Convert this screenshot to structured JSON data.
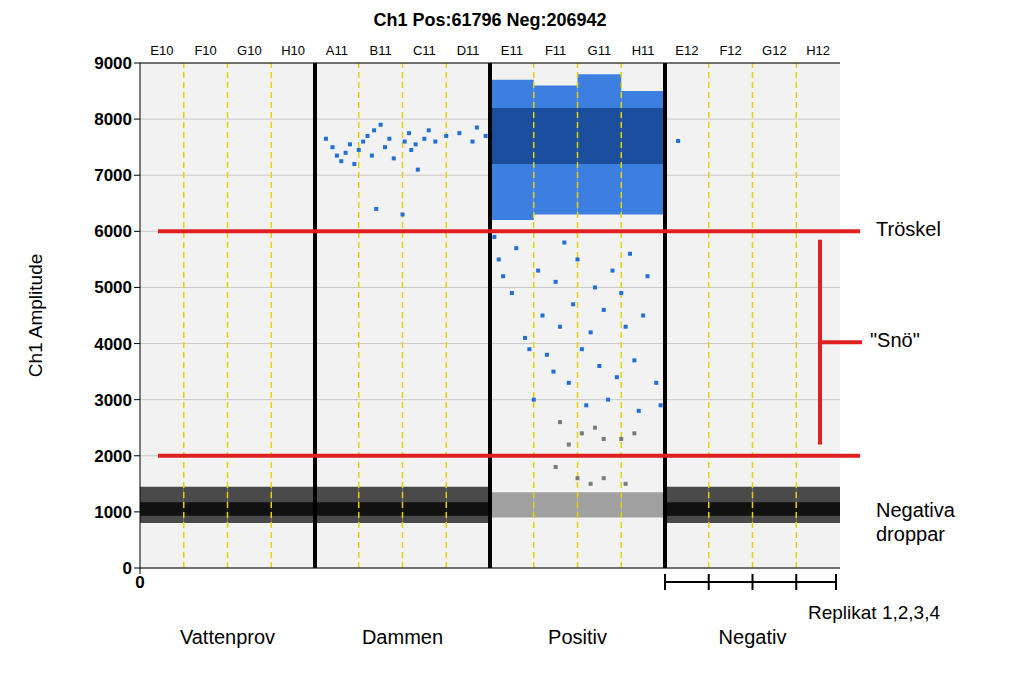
{
  "chart_data": {
    "type": "scatter",
    "title": "Ch1 Pos:61796 Neg:206942",
    "y_label": "Ch1 Amplitude",
    "wells": [
      "E10",
      "F10",
      "G10",
      "H10",
      "A11",
      "B11",
      "C11",
      "D11",
      "E11",
      "F11",
      "G11",
      "H11",
      "E12",
      "F12",
      "G12",
      "H12"
    ],
    "groups": [
      {
        "label": "Vattenprov",
        "wells": 4
      },
      {
        "label": "Dammen",
        "wells": 4
      },
      {
        "label": "Positiv",
        "wells": 4
      },
      {
        "label": "Negativ",
        "wells": 4
      }
    ],
    "xlim": [
      0,
      16
    ],
    "xticks": [
      0
    ],
    "ylim": [
      0,
      9000
    ],
    "yticks": [
      0,
      1000,
      2000,
      3000,
      4000,
      5000,
      6000,
      7000,
      8000,
      9000
    ],
    "grid": true,
    "marker": "square",
    "thresholds": [
      {
        "value": 6000,
        "label": "Tröskel",
        "color": "#e02020"
      },
      {
        "value": 2000,
        "color": "#e02020"
      }
    ],
    "snow": {
      "label": "\"Snö\"",
      "range": [
        2200,
        5850
      ],
      "color": "#e02020"
    },
    "negative_label": {
      "label": "Negativa droppar",
      "value": 1000
    },
    "replicate_label": "Replikat 1,2,3,4",
    "bands": [
      {
        "color": "#4a4a4a",
        "ranges": [
          [
            0,
            800,
            1450
          ],
          [
            1,
            800,
            1450
          ],
          [
            2,
            800,
            1450
          ],
          [
            3,
            800,
            1450
          ],
          [
            4,
            800,
            1450
          ],
          [
            5,
            800,
            1450
          ],
          [
            6,
            800,
            1450
          ],
          [
            7,
            800,
            1450
          ],
          [
            12,
            800,
            1450
          ],
          [
            13,
            800,
            1450
          ],
          [
            14,
            800,
            1450
          ],
          [
            15,
            800,
            1450
          ]
        ]
      },
      {
        "color": "#111111",
        "ranges": [
          [
            0,
            930,
            1170
          ],
          [
            1,
            930,
            1170
          ],
          [
            2,
            930,
            1170
          ],
          [
            3,
            930,
            1170
          ],
          [
            4,
            930,
            1170
          ],
          [
            5,
            930,
            1170
          ],
          [
            6,
            930,
            1170
          ],
          [
            7,
            930,
            1170
          ],
          [
            12,
            930,
            1170
          ],
          [
            13,
            930,
            1170
          ],
          [
            14,
            930,
            1170
          ],
          [
            15,
            930,
            1170
          ]
        ]
      },
      {
        "color": "#a0a0a0",
        "ranges": [
          [
            8,
            900,
            1350
          ],
          [
            9,
            900,
            1350
          ],
          [
            10,
            900,
            1350
          ],
          [
            11,
            900,
            1350
          ]
        ]
      },
      {
        "color": "#3d7fe0",
        "ranges": [
          [
            8,
            6200,
            8700
          ],
          [
            9,
            6300,
            8600
          ],
          [
            10,
            6300,
            8800
          ],
          [
            11,
            6300,
            8500
          ]
        ]
      },
      {
        "color": "#1b4f9e",
        "ranges": [
          [
            8,
            7200,
            8200
          ],
          [
            9,
            7200,
            8200
          ],
          [
            10,
            7200,
            8200
          ],
          [
            11,
            7200,
            8200
          ]
        ]
      }
    ],
    "series": [
      {
        "color": "#1f6fd6",
        "points": [
          [
            4.25,
            7650
          ],
          [
            4.4,
            7500
          ],
          [
            4.5,
            7350
          ],
          [
            4.6,
            7250
          ],
          [
            4.7,
            7400
          ],
          [
            4.8,
            7550
          ],
          [
            4.9,
            7200
          ],
          [
            5.0,
            7450
          ],
          [
            5.1,
            7600
          ],
          [
            5.2,
            7700
          ],
          [
            5.3,
            7350
          ],
          [
            5.35,
            7800
          ],
          [
            5.5,
            7900
          ],
          [
            5.6,
            7500
          ],
          [
            5.7,
            7650
          ],
          [
            5.4,
            6400
          ],
          [
            5.8,
            7300
          ],
          [
            6.0,
            6300
          ],
          [
            6.05,
            7600
          ],
          [
            6.15,
            7750
          ],
          [
            6.2,
            7450
          ],
          [
            6.3,
            7550
          ],
          [
            6.35,
            7100
          ],
          [
            6.5,
            7650
          ],
          [
            6.6,
            7800
          ],
          [
            6.75,
            7600
          ],
          [
            7.0,
            7700
          ],
          [
            7.3,
            7750
          ],
          [
            7.6,
            7600
          ],
          [
            7.7,
            7850
          ],
          [
            7.9,
            7700
          ],
          [
            12.3,
            7610
          ],
          [
            8.1,
            5900
          ],
          [
            8.2,
            5500
          ],
          [
            8.3,
            5200
          ],
          [
            8.5,
            4900
          ],
          [
            8.6,
            5700
          ],
          [
            8.8,
            4100
          ],
          [
            8.9,
            3900
          ],
          [
            9.0,
            3000
          ],
          [
            9.1,
            5300
          ],
          [
            9.2,
            4500
          ],
          [
            9.3,
            3800
          ],
          [
            9.45,
            3500
          ],
          [
            9.5,
            5100
          ],
          [
            9.6,
            4300
          ],
          [
            9.7,
            5800
          ],
          [
            9.8,
            3300
          ],
          [
            9.9,
            4700
          ],
          [
            10.0,
            5500
          ],
          [
            10.1,
            3900
          ],
          [
            10.2,
            2900
          ],
          [
            10.3,
            4200
          ],
          [
            10.4,
            5000
          ],
          [
            10.5,
            3600
          ],
          [
            10.6,
            4600
          ],
          [
            10.7,
            3000
          ],
          [
            10.8,
            5300
          ],
          [
            10.9,
            3400
          ],
          [
            11.0,
            4900
          ],
          [
            11.1,
            4300
          ],
          [
            11.2,
            5600
          ],
          [
            11.3,
            3700
          ],
          [
            11.4,
            2800
          ],
          [
            11.5,
            4500
          ],
          [
            11.6,
            5200
          ],
          [
            11.8,
            3300
          ],
          [
            11.9,
            2900
          ]
        ]
      },
      {
        "color": "#7a7a7a",
        "points": [
          [
            9.6,
            2600
          ],
          [
            9.8,
            2200
          ],
          [
            10.1,
            2400
          ],
          [
            10.4,
            2500
          ],
          [
            10.6,
            2300
          ],
          [
            11.0,
            2300
          ],
          [
            11.3,
            2400
          ],
          [
            10.0,
            1600
          ],
          [
            10.3,
            1500
          ],
          [
            10.6,
            1600
          ],
          [
            9.5,
            1800
          ],
          [
            11.1,
            1500
          ]
        ]
      }
    ]
  }
}
